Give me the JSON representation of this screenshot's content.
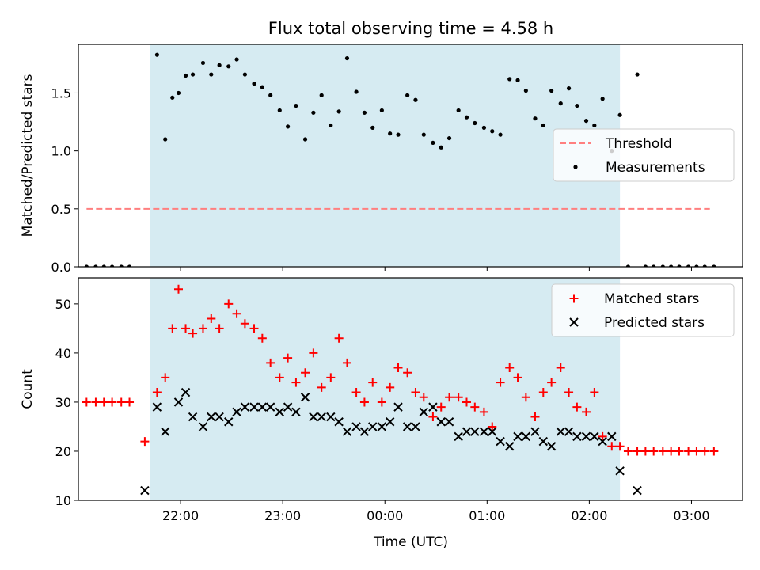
{
  "chart_data": {
    "title": "Flux total observing time = 4.58 h",
    "xlabel": "Time (UTC)",
    "x_ticks": [
      {
        "t": 22,
        "label": "22:00"
      },
      {
        "t": 23,
        "label": "23:00"
      },
      {
        "t": 24,
        "label": "00:00"
      },
      {
        "t": 25,
        "label": "01:00"
      },
      {
        "t": 26,
        "label": "02:00"
      },
      {
        "t": 27,
        "label": "03:00"
      }
    ],
    "xlim": [
      21.0,
      27.5
    ],
    "shaded_interval": {
      "start": 21.7,
      "end": 26.3,
      "color": "#add8e6"
    },
    "panels": [
      {
        "type": "scatter",
        "ylabel": "Matched/Predicted stars",
        "ylim": [
          0,
          1.92
        ],
        "y_ticks": [
          0.0,
          0.5,
          1.0,
          1.5
        ],
        "y_tick_labels": [
          "0.0",
          "0.5",
          "1.0",
          "1.5"
        ],
        "legend": {
          "position": "center-right"
        },
        "series": [
          {
            "name": "Threshold",
            "kind": "dashed-line",
            "color": "#ff7f7f",
            "x": [
              21.08,
              27.18
            ],
            "values": [
              0.5,
              0.5
            ]
          },
          {
            "name": "Measurements",
            "kind": "dot",
            "color": "#000000",
            "x": [
              21.08,
              21.17,
              21.25,
              21.33,
              21.42,
              21.5,
              21.77,
              21.85,
              21.92,
              21.98,
              22.05,
              22.12,
              22.22,
              22.3,
              22.38,
              22.47,
              22.55,
              22.63,
              22.72,
              22.8,
              22.88,
              22.97,
              23.05,
              23.13,
              23.22,
              23.3,
              23.38,
              23.47,
              23.55,
              23.63,
              23.72,
              23.8,
              23.88,
              23.97,
              24.05,
              24.13,
              24.22,
              24.3,
              24.38,
              24.47,
              24.55,
              24.63,
              24.72,
              24.8,
              24.88,
              24.97,
              25.05,
              25.13,
              25.22,
              25.3,
              25.38,
              25.47,
              25.55,
              25.63,
              25.72,
              25.8,
              25.88,
              25.97,
              26.05,
              26.13,
              26.22,
              26.3,
              26.38,
              26.47,
              26.55,
              26.63,
              26.72,
              26.8,
              26.88,
              26.97,
              27.05,
              27.13,
              27.22
            ],
            "values": [
              0,
              0,
              0,
              0,
              0,
              0,
              1.83,
              1.1,
              1.46,
              1.5,
              1.65,
              1.66,
              1.76,
              1.66,
              1.74,
              1.73,
              1.79,
              1.66,
              1.58,
              1.55,
              1.48,
              1.35,
              1.21,
              1.39,
              1.1,
              1.33,
              1.48,
              1.22,
              1.34,
              1.8,
              1.51,
              1.33,
              1.2,
              1.35,
              1.15,
              1.14,
              1.48,
              1.44,
              1.14,
              1.07,
              1.03,
              1.11,
              1.35,
              1.29,
              1.24,
              1.2,
              1.17,
              1.14,
              1.62,
              1.61,
              1.52,
              1.28,
              1.22,
              1.52,
              1.41,
              1.54,
              1.39,
              1.26,
              1.22,
              1.45,
              1.0,
              1.31,
              0,
              1.66,
              0,
              0,
              0,
              0,
              0,
              0,
              0,
              0,
              0
            ]
          }
        ]
      },
      {
        "type": "scatter",
        "ylabel": "Count",
        "ylim": [
          10,
          55.3
        ],
        "y_ticks": [
          10,
          20,
          30,
          40,
          50
        ],
        "y_tick_labels": [
          "10",
          "20",
          "30",
          "40",
          "50"
        ],
        "legend": {
          "position": "top-right"
        },
        "series": [
          {
            "name": "Matched stars",
            "kind": "plus",
            "color": "#ff0000",
            "x": [
              21.08,
              21.17,
              21.25,
              21.33,
              21.42,
              21.5,
              21.65,
              21.77,
              21.85,
              21.92,
              21.98,
              22.05,
              22.12,
              22.22,
              22.3,
              22.38,
              22.47,
              22.55,
              22.63,
              22.72,
              22.8,
              22.88,
              22.97,
              23.05,
              23.13,
              23.22,
              23.3,
              23.38,
              23.47,
              23.55,
              23.63,
              23.72,
              23.8,
              23.88,
              23.97,
              24.05,
              24.13,
              24.22,
              24.3,
              24.38,
              24.47,
              24.55,
              24.63,
              24.72,
              24.8,
              24.88,
              24.97,
              25.05,
              25.13,
              25.22,
              25.3,
              25.38,
              25.47,
              25.55,
              25.63,
              25.72,
              25.8,
              25.88,
              25.97,
              26.05,
              26.13,
              26.22,
              26.3,
              26.38,
              26.47,
              26.55,
              26.63,
              26.72,
              26.8,
              26.88,
              26.97,
              27.05,
              27.13,
              27.22
            ],
            "values": [
              30,
              30,
              30,
              30,
              30,
              30,
              22,
              32,
              35,
              45,
              53,
              45,
              44,
              45,
              47,
              45,
              50,
              48,
              46,
              45,
              43,
              38,
              35,
              39,
              34,
              36,
              40,
              33,
              35,
              43,
              38,
              32,
              30,
              34,
              30,
              33,
              37,
              36,
              32,
              31,
              27,
              29,
              31,
              31,
              30,
              29,
              28,
              25,
              34,
              37,
              35,
              31,
              27,
              32,
              34,
              37,
              32,
              29,
              28,
              32,
              23,
              21,
              21,
              20,
              20,
              20,
              20,
              20,
              20,
              20,
              20,
              20,
              20,
              20
            ]
          },
          {
            "name": "Predicted stars",
            "kind": "x",
            "color": "#000000",
            "x": [
              21.65,
              21.77,
              21.85,
              21.98,
              22.05,
              22.12,
              22.22,
              22.3,
              22.38,
              22.47,
              22.55,
              22.63,
              22.72,
              22.8,
              22.88,
              22.97,
              23.05,
              23.13,
              23.22,
              23.3,
              23.38,
              23.47,
              23.55,
              23.63,
              23.72,
              23.8,
              23.88,
              23.97,
              24.05,
              24.13,
              24.22,
              24.3,
              24.38,
              24.47,
              24.55,
              24.63,
              24.72,
              24.8,
              24.88,
              24.97,
              25.05,
              25.13,
              25.22,
              25.3,
              25.38,
              25.47,
              25.55,
              25.63,
              25.72,
              25.8,
              25.88,
              25.97,
              26.05,
              26.13,
              26.22,
              26.3,
              26.47
            ],
            "values": [
              12,
              29,
              24,
              30,
              32,
              27,
              25,
              27,
              27,
              26,
              28,
              29,
              29,
              29,
              29,
              28,
              29,
              28,
              31,
              27,
              27,
              27,
              26,
              24,
              25,
              24,
              25,
              25,
              26,
              29,
              25,
              25,
              28,
              29,
              26,
              26,
              23,
              24,
              24,
              24,
              24,
              22,
              21,
              23,
              23,
              24,
              22,
              21,
              24,
              24,
              23,
              23,
              23,
              22,
              23,
              16,
              12
            ]
          }
        ]
      }
    ]
  }
}
